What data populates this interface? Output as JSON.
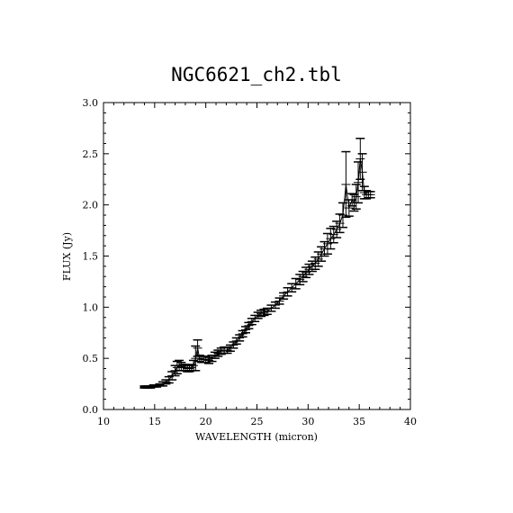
{
  "chart_data": {
    "type": "line",
    "title": "NGC6621_ch2.tbl",
    "xlabel": "WAVELENGTH (micron)",
    "ylabel": "FLUX (Jy)",
    "xlim": [
      10,
      40
    ],
    "ylim": [
      0.0,
      3.0
    ],
    "xticks": [
      10,
      15,
      20,
      25,
      30,
      35,
      40
    ],
    "yticks": [
      0.0,
      0.5,
      1.0,
      1.5,
      2.0,
      2.5,
      3.0
    ],
    "xtick_labels": [
      "10",
      "15",
      "20",
      "25",
      "30",
      "35",
      "40"
    ],
    "ytick_labels": [
      "0.0",
      "0.5",
      "1.0",
      "1.5",
      "2.0",
      "2.5",
      "3.0"
    ],
    "grid": false,
    "series": [
      {
        "error_bars": true,
        "x": [
          14.0,
          14.3,
          14.6,
          14.9,
          15.2,
          15.5,
          15.8,
          16.1,
          16.4,
          16.7,
          17.0,
          17.2,
          17.4,
          17.6,
          17.8,
          18.0,
          18.2,
          18.4,
          18.6,
          18.8,
          19.0,
          19.2,
          19.4,
          19.6,
          19.8,
          20.0,
          20.3,
          20.6,
          20.9,
          21.2,
          21.5,
          21.8,
          22.1,
          22.4,
          22.7,
          23.0,
          23.3,
          23.6,
          23.9,
          24.2,
          24.5,
          24.8,
          25.1,
          25.4,
          25.7,
          26.0,
          26.4,
          26.8,
          27.2,
          27.6,
          28.0,
          28.4,
          28.8,
          29.2,
          29.5,
          29.8,
          30.1,
          30.4,
          30.7,
          31.0,
          31.3,
          31.6,
          31.9,
          32.2,
          32.5,
          32.8,
          33.1,
          33.4,
          33.7,
          34.0,
          34.3,
          34.5,
          34.7,
          34.9,
          35.1,
          35.3,
          35.5,
          35.7,
          35.9,
          36.1
        ],
        "y": [
          0.22,
          0.22,
          0.22,
          0.23,
          0.23,
          0.24,
          0.25,
          0.27,
          0.29,
          0.33,
          0.38,
          0.41,
          0.43,
          0.42,
          0.41,
          0.41,
          0.4,
          0.4,
          0.41,
          0.43,
          0.5,
          0.6,
          0.5,
          0.49,
          0.49,
          0.49,
          0.48,
          0.5,
          0.53,
          0.55,
          0.57,
          0.58,
          0.58,
          0.6,
          0.63,
          0.67,
          0.7,
          0.74,
          0.78,
          0.82,
          0.86,
          0.89,
          0.92,
          0.94,
          0.95,
          0.96,
          0.99,
          1.02,
          1.06,
          1.11,
          1.15,
          1.19,
          1.23,
          1.27,
          1.3,
          1.34,
          1.37,
          1.4,
          1.43,
          1.47,
          1.52,
          1.57,
          1.62,
          1.67,
          1.71,
          1.76,
          1.82,
          1.9,
          2.2,
          1.97,
          2.05,
          2.02,
          2.08,
          2.22,
          2.45,
          2.32,
          2.12,
          2.1,
          2.1,
          2.1
        ],
        "err": [
          0.01,
          0.01,
          0.01,
          0.01,
          0.01,
          0.01,
          0.02,
          0.02,
          0.03,
          0.04,
          0.05,
          0.06,
          0.05,
          0.04,
          0.03,
          0.03,
          0.03,
          0.03,
          0.03,
          0.05,
          0.12,
          0.08,
          0.03,
          0.03,
          0.03,
          0.03,
          0.03,
          0.03,
          0.03,
          0.03,
          0.03,
          0.03,
          0.03,
          0.03,
          0.03,
          0.03,
          0.03,
          0.03,
          0.03,
          0.03,
          0.03,
          0.03,
          0.03,
          0.03,
          0.03,
          0.03,
          0.03,
          0.03,
          0.03,
          0.03,
          0.04,
          0.04,
          0.05,
          0.05,
          0.05,
          0.05,
          0.05,
          0.05,
          0.06,
          0.07,
          0.07,
          0.07,
          0.1,
          0.1,
          0.08,
          0.08,
          0.09,
          0.12,
          0.32,
          0.08,
          0.06,
          0.08,
          0.12,
          0.2,
          0.2,
          0.18,
          0.06,
          0.04,
          0.03,
          0.03
        ]
      }
    ]
  }
}
